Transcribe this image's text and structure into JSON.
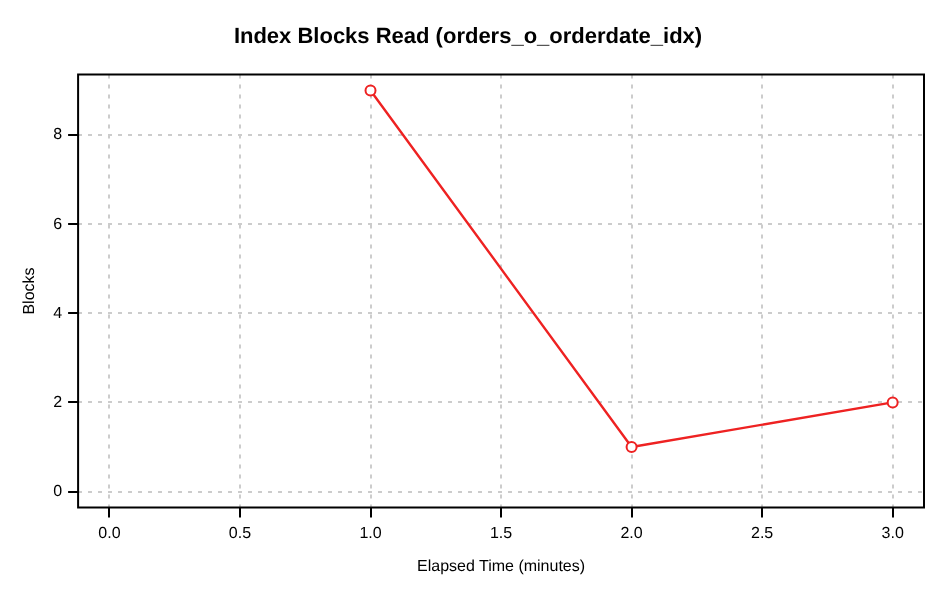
{
  "chart_data": {
    "type": "line",
    "title": "Index Blocks Read (orders_o_orderdate_idx)",
    "xlabel": "Elapsed Time (minutes)",
    "ylabel": "Blocks",
    "x": [
      1,
      2,
      3
    ],
    "series": [
      {
        "color": "#ee2222",
        "values": [
          9,
          1,
          2
        ]
      }
    ],
    "xlim": [
      -0.12,
      3.12
    ],
    "xticks": [
      {
        "value": 0,
        "label": "0.0"
      },
      {
        "value": 0.5,
        "label": "0.5"
      },
      {
        "value": 1,
        "label": "1.0"
      },
      {
        "value": 1.5,
        "label": "1.5"
      },
      {
        "value": 2,
        "label": "2.0"
      },
      {
        "value": 2.5,
        "label": "2.5"
      },
      {
        "value": 3,
        "label": "3.0"
      }
    ],
    "ylim": [
      -0.36,
      9.36
    ],
    "yticks": [
      0,
      2,
      4,
      6,
      8
    ],
    "grid": true,
    "legend": false,
    "marker": "circle",
    "line_style": "solid"
  }
}
